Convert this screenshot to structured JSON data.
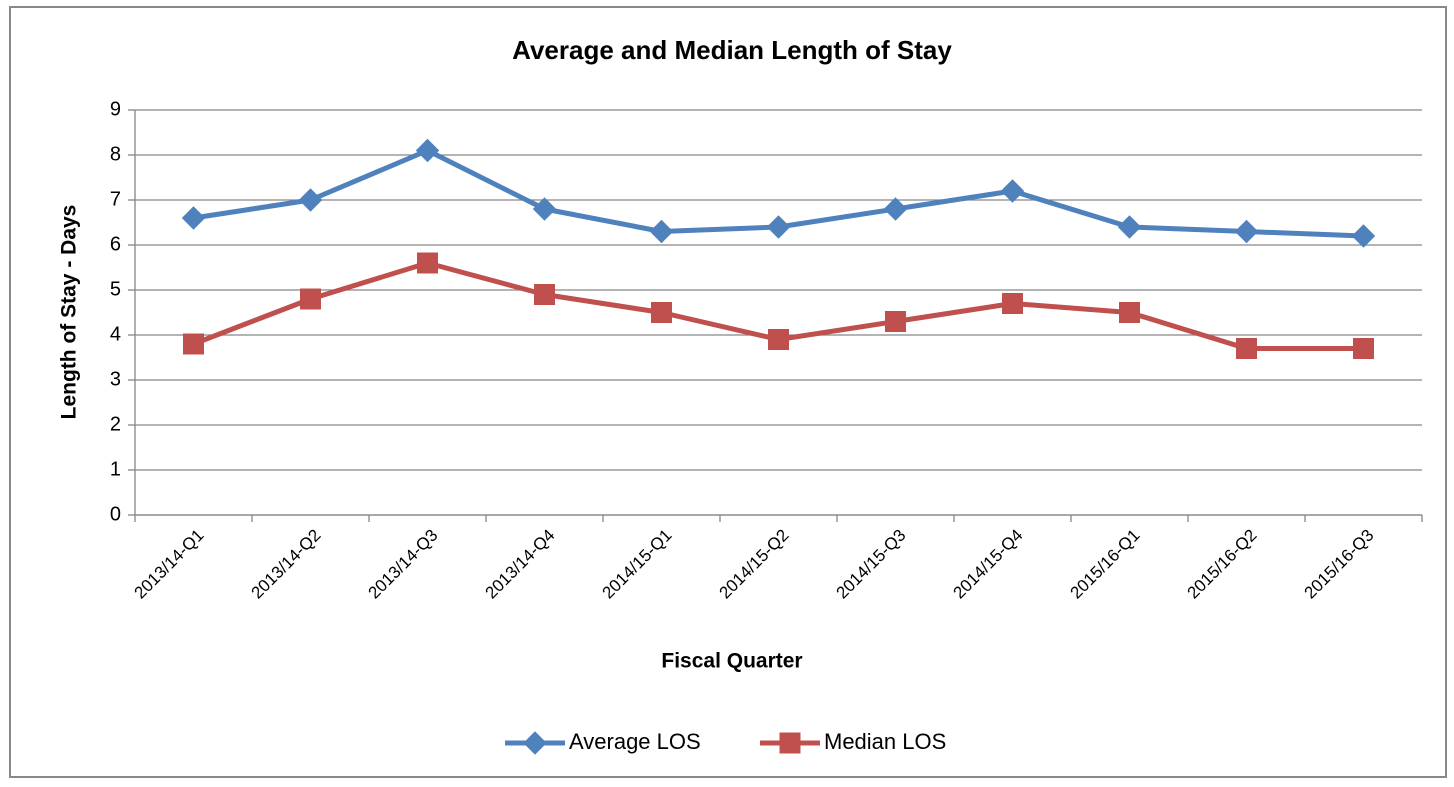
{
  "chart_data": {
    "type": "line",
    "title": "Average and Median Length of Stay",
    "x_label": "Fiscal Quarter",
    "y_label": "Length of Stay - Days",
    "categories": [
      "2013/14-Q1",
      "2013/14-Q2",
      "2013/14-Q3",
      "2013/14-Q4",
      "2014/15-Q1",
      "2014/15-Q2",
      "2014/15-Q3",
      "2014/15-Q4",
      "2015/16-Q1",
      "2015/16-Q2",
      "2015/16-Q3"
    ],
    "series": [
      {
        "name": "Average LOS",
        "color": "#4f81bd",
        "marker": "diamond",
        "values": [
          6.6,
          7.0,
          8.1,
          6.8,
          6.3,
          6.4,
          6.8,
          7.2,
          6.4,
          6.3,
          6.2
        ]
      },
      {
        "name": "Median LOS",
        "color": "#c0504d",
        "marker": "square",
        "values": [
          3.8,
          4.8,
          5.6,
          4.9,
          4.5,
          3.9,
          4.3,
          4.7,
          4.5,
          3.7,
          3.7
        ]
      }
    ],
    "ylim": [
      0,
      9
    ],
    "yticks": [
      0,
      1,
      2,
      3,
      4,
      5,
      6,
      7,
      8,
      9
    ],
    "grid": true,
    "legend": "bottom"
  }
}
